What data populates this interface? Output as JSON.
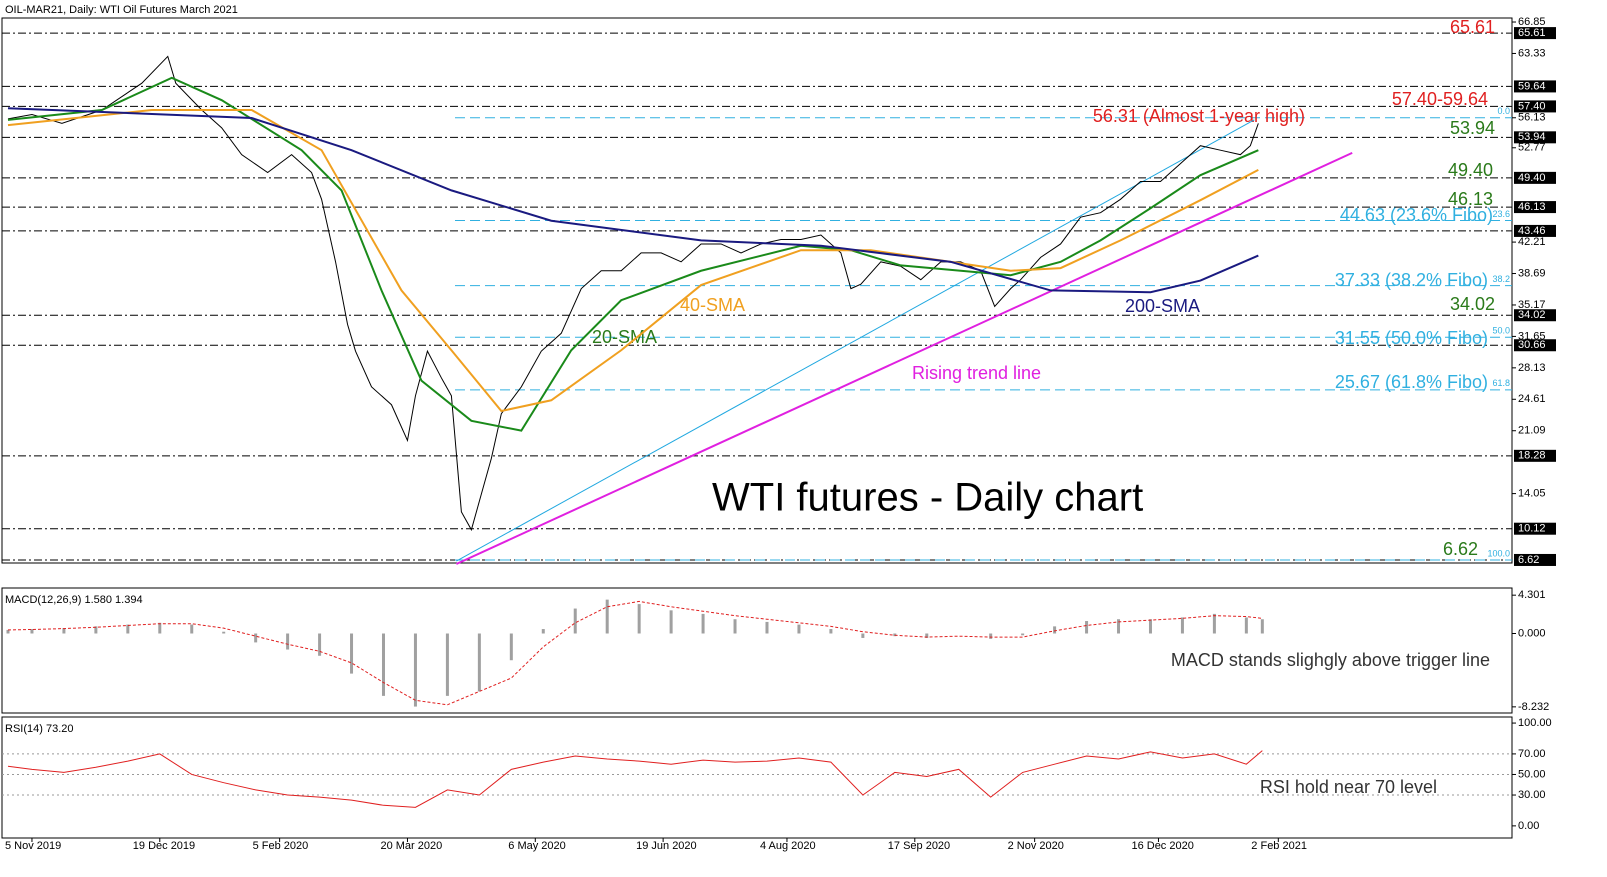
{
  "chart_data": {
    "type": "line",
    "title": "OIL-MAR21, Daily:  WTI Oil Futures March 2021",
    "xlim": [
      -7.5,
      370.5
    ],
    "xticks": [
      {
        "value": 0,
        "label": "5 Nov 2019"
      },
      {
        "value": 32,
        "label": "19 Dec 2019"
      },
      {
        "value": 62,
        "label": "5 Feb 2020"
      },
      {
        "value": 94,
        "label": "20 Mar 2020"
      },
      {
        "value": 126,
        "label": "6 May 2020"
      },
      {
        "value": 158,
        "label": "19 Jun 2020"
      },
      {
        "value": 189,
        "label": "4 Aug 2020"
      },
      {
        "value": 221,
        "label": "17 Sep 2020"
      },
      {
        "value": 251,
        "label": "2 Nov 2020"
      },
      {
        "value": 282,
        "label": "16 Dec 2020"
      },
      {
        "value": 312,
        "label": "2 Feb 2021"
      }
    ],
    "ylim": [
      6.28,
      67.3
    ],
    "yticks": [
      66.85,
      63.33,
      56.13,
      52.77,
      42.21,
      38.69,
      35.17,
      31.65,
      28.13,
      24.61,
      21.09,
      14.05
    ],
    "levels": [
      65.61,
      59.64,
      {
        "value": 57.4,
        "label": "57.40"
      },
      53.94,
      {
        "value": 49.4,
        "label": "49.40"
      },
      46.13,
      43.46,
      34.02,
      30.66,
      18.28,
      10.12,
      6.62
    ],
    "fibo": [
      {
        "value": 56.13,
        "label": "0.0"
      },
      {
        "value": 44.63,
        "label": "23.6"
      },
      {
        "value": 37.33,
        "label": "38.2"
      },
      {
        "value": 31.55,
        "label": "50.0"
      },
      {
        "value": 25.67,
        "label": "61.8"
      },
      {
        "value": 6.62,
        "label": "100.0"
      }
    ],
    "series": [
      {
        "color": "#000000",
        "x": [
          -6,
          0,
          7.5,
          17.5,
          27.5,
          34,
          36,
          42.5,
          47.5,
          52.5,
          59,
          65,
          70,
          72.5,
          76,
          79,
          81,
          85,
          90,
          94,
          96,
          99,
          102.5,
          105,
          107.5,
          110,
          112.5,
          115,
          117.5,
          122.5,
          127.5,
          132.5,
          137.5,
          142.5,
          147.5,
          152.5,
          157.5,
          162.5,
          167.5,
          172.5,
          177.5,
          182.5,
          187.5,
          192.5,
          197.5,
          202.5,
          205,
          207.5,
          212.5,
          217.5,
          222.5,
          227.5,
          232.5,
          237.5,
          241,
          245,
          247.5,
          252.5,
          257.5,
          262.5,
          267.5,
          272.5,
          277.5,
          282.5,
          287.5,
          292.5,
          297.5,
          302.5,
          305,
          307
        ],
        "values": [
          56,
          56.5,
          55.5,
          57,
          60,
          63,
          60,
          57,
          55,
          52,
          50,
          52,
          50,
          47,
          40,
          33,
          30,
          26,
          24,
          20,
          25,
          30,
          27,
          25,
          12,
          10,
          14,
          18,
          23,
          26,
          30,
          32,
          37,
          39,
          39,
          41,
          41,
          40,
          42,
          42,
          41,
          42,
          42.5,
          42.5,
          43,
          41,
          37,
          37.5,
          40,
          39.5,
          38,
          40,
          40,
          39,
          35,
          37,
          38,
          40.5,
          42,
          45,
          45.5,
          47,
          49,
          49,
          51,
          53,
          52.5,
          52,
          53,
          55.5
        ]
      },
      {
        "color": "#1a8a1a",
        "x": [
          -6,
          17.5,
          35,
          47.5,
          67.5,
          77.5,
          87.5,
          97.5,
          110,
          122.5,
          135,
          147.5,
          167.5,
          192.5,
          205,
          217.5,
          232.5,
          245,
          257.5,
          267.5,
          280,
          292.5,
          307
        ],
        "values": [
          55.9,
          57,
          60.6,
          58.1,
          52.5,
          48,
          36.8,
          26.7,
          22.2,
          21.1,
          30.1,
          35.7,
          39,
          41.8,
          41.3,
          39.6,
          39,
          38.5,
          40,
          42.4,
          46,
          49.7,
          52.5
        ]
      },
      {
        "color": "#f0a020",
        "x": [
          -6,
          30,
          55,
          72.5,
          92.5,
          105,
          117.5,
          130,
          147.5,
          167.5,
          192.5,
          210,
          230,
          245,
          257.5,
          272.5,
          292.5,
          307
        ],
        "values": [
          55.3,
          57,
          57,
          52.5,
          36.8,
          30.1,
          23.3,
          24.5,
          30.1,
          37.4,
          41.3,
          41.3,
          40,
          39,
          39.3,
          42.4,
          46.9,
          50.3
        ]
      },
      {
        "color": "#1a1a80",
        "x": [
          -6,
          55,
          80,
          105,
          130,
          167.5,
          197.5,
          230,
          255,
          280,
          292.5,
          307
        ],
        "values": [
          57.2,
          56.1,
          52.5,
          48,
          44.6,
          42.4,
          41.8,
          40,
          36.8,
          36.6,
          37.9,
          40.7
        ]
      }
    ],
    "trend_lines": [
      {
        "color": "#e020e0",
        "x": [
          106.25,
          330.5
        ],
        "values": [
          6.17,
          52.2
        ]
      },
      {
        "color": "#20a8e0",
        "x": [
          106.25,
          306
        ],
        "values": [
          6.5,
          55.9
        ]
      }
    ],
    "annotations": [
      "65.61",
      "57.40-59.64",
      "56.31 (Almost 1-year high)",
      "53.94",
      "49.40",
      "46.13",
      "44.63 (23.6% Fibo)",
      "37.33 (38.2% Fibo)",
      "34.02",
      "31.55 (50.0% Fibo)",
      "25.67 (61.8% Fibo)",
      "6.62",
      "40-SMA",
      "20-SMA",
      "200-SMA",
      "Rising trend line",
      "WTI futures - Daily chart"
    ],
    "macd": {
      "title": "MACD(12,26,9) 1.580 1.394",
      "ylim": [
        -8.922,
        5.106
      ],
      "yticks": [
        {
          "value": 4.301,
          "label": "4.301"
        },
        {
          "value": 0,
          "label": "0.000"
        },
        {
          "value": -8.232,
          "label": "-8.232"
        }
      ],
      "x": [
        -6,
        0,
        8,
        16,
        24,
        32,
        40,
        48,
        56,
        64,
        72,
        80,
        88,
        96,
        104,
        112,
        120,
        128,
        136,
        144,
        152,
        160,
        168,
        176,
        184,
        192,
        200,
        208,
        216,
        224,
        232,
        240,
        248,
        256,
        264,
        272,
        280,
        288,
        296,
        304,
        308
      ],
      "histogram": [
        0.4,
        0.5,
        0.6,
        0.8,
        1.0,
        1.2,
        1.0,
        0.2,
        -1.0,
        -1.8,
        -2.5,
        -4.5,
        -7.0,
        -8.2,
        -7.0,
        -6.5,
        -3.0,
        0.5,
        2.8,
        3.8,
        3.3,
        2.6,
        2.2,
        1.6,
        1.3,
        1.0,
        0.5,
        -0.5,
        -0.3,
        -0.5,
        0.0,
        -0.6,
        -0.2,
        0.8,
        1.4,
        1.6,
        1.6,
        1.8,
        2.2,
        1.8,
        1.6
      ],
      "signal": [
        0.4,
        0.45,
        0.55,
        0.7,
        0.9,
        1.1,
        1.1,
        0.6,
        -0.3,
        -1.2,
        -2.0,
        -3.3,
        -5.5,
        -7.5,
        -8.0,
        -6.5,
        -5.0,
        -1.5,
        1.2,
        3.0,
        3.6,
        3.0,
        2.5,
        2.0,
        1.6,
        1.2,
        0.8,
        0.2,
        -0.2,
        -0.4,
        -0.3,
        -0.4,
        -0.4,
        0.3,
        0.9,
        1.3,
        1.5,
        1.7,
        2.0,
        1.9,
        1.7
      ],
      "annotation": "MACD stands slighgly above trigger line"
    },
    "rsi": {
      "title": "RSI(14) 73.20",
      "ylim": [
        -11.8,
        105.9
      ],
      "yticks": [
        {
          "value": 100,
          "label": "100.00"
        },
        {
          "value": 70,
          "label": "70.00"
        },
        {
          "value": 50,
          "label": "50.00"
        },
        {
          "value": 30,
          "label": "30.00"
        },
        {
          "value": 0,
          "label": "0.00"
        }
      ],
      "levels": [
        70,
        50,
        30
      ],
      "x": [
        -6,
        0,
        8,
        16,
        24,
        32,
        40,
        48,
        56,
        64,
        72,
        80,
        88,
        96,
        104,
        112,
        120,
        128,
        136,
        144,
        152,
        160,
        168,
        176,
        184,
        192,
        200,
        208,
        216,
        224,
        232,
        240,
        248,
        256,
        264,
        272,
        280,
        288,
        296,
        304,
        308
      ],
      "values": [
        58,
        55,
        52,
        57,
        63,
        70,
        50,
        42,
        35,
        30,
        28,
        25,
        20,
        18,
        35,
        30,
        55,
        62,
        68,
        65,
        63,
        60,
        64,
        62,
        63,
        66,
        62,
        30,
        52,
        48,
        55,
        28,
        52,
        60,
        68,
        65,
        72,
        66,
        70,
        60,
        73.2
      ],
      "annotation": "RSI hold near 70 level"
    }
  }
}
